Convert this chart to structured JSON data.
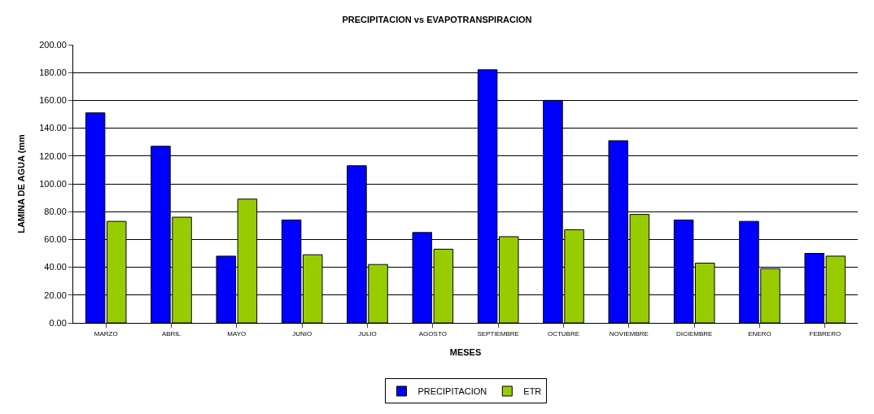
{
  "chart_data": {
    "type": "bar",
    "title": "PRECIPITACION vs EVAPOTRANSPIRACION",
    "xlabel": "MESES",
    "ylabel": "LAMINA DE AGUA (mm",
    "categories": [
      "MARZO",
      "ABRIL",
      "MAYO",
      "JUNIO",
      "JULIO",
      "AGOSTO",
      "SEPTIEMBRE",
      "OCTUBRE",
      "NOVIEMBRE",
      "DICIEMBRE",
      "ENERO",
      "FEBRERO"
    ],
    "series": [
      {
        "name": "PRECIPITACION",
        "color": "#0000ff",
        "values": [
          151,
          127,
          48,
          74,
          113,
          65,
          182,
          160,
          131,
          74,
          73,
          50
        ]
      },
      {
        "name": "ETR",
        "color": "#99cc00",
        "values": [
          73,
          76,
          89,
          49,
          42,
          53,
          62,
          67,
          78,
          43,
          39,
          48
        ]
      }
    ],
    "ylim": [
      0,
      200
    ],
    "yticks": [
      {
        "value": 0,
        "label": "0.00"
      },
      {
        "value": 20,
        "label": "20.00"
      },
      {
        "value": 40,
        "label": "40.00"
      },
      {
        "value": 60,
        "label": "60.00"
      },
      {
        "value": 80,
        "label": "80.00"
      },
      {
        "value": 100,
        "label": "100.00"
      },
      {
        "value": 120,
        "label": "120.00"
      },
      {
        "value": 140,
        "label": "140.00"
      },
      {
        "value": 160,
        "label": "160.00"
      },
      {
        "value": 180,
        "label": "180.00"
      },
      {
        "value": 200,
        "label": "200.00"
      }
    ],
    "grid": "y",
    "legend": "bottom"
  }
}
